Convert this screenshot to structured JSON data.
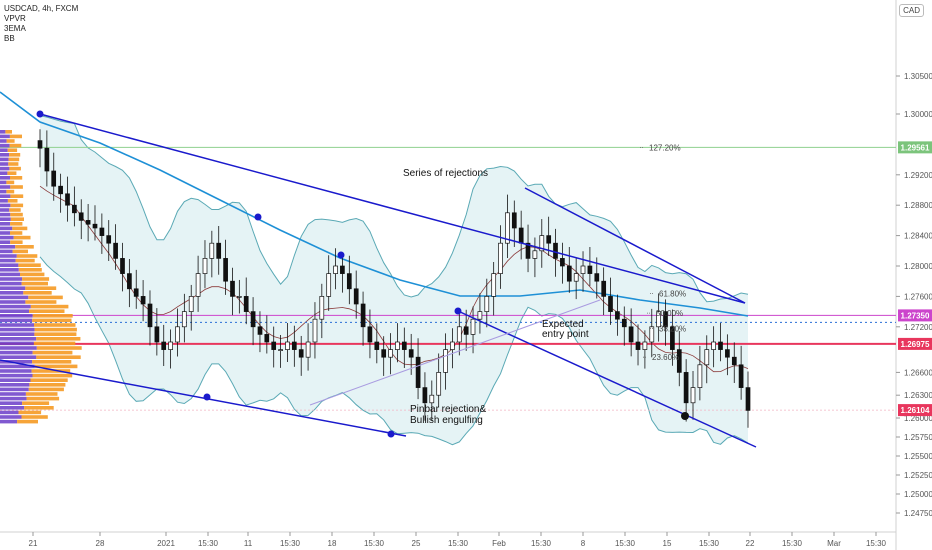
{
  "header": {
    "symbol": "USDCAD, 4h, FXCM",
    "indicators": [
      "VPVR",
      "3EMA",
      "BB"
    ]
  },
  "currency_button": "CAD",
  "colors": {
    "down_trendline": "#1a1acc",
    "ema": "#1e90d6",
    "bb": "#5aa9b5",
    "bb_fill": "#dff0f2",
    "level_green": "#8fd18f",
    "level_magenta": "#cc44cc",
    "level_red": "#e8365d",
    "vol_purple": "#6a3cc8",
    "vol_orange": "#f59a23",
    "candle": "#111111"
  },
  "price_labels": {
    "level_green": "1.29561",
    "level_magenta": "1.27350",
    "level_red": "1.26975",
    "last_price": "1.26104"
  },
  "annotations": {
    "series_of_rejections": "Series of rejections",
    "expected_entry_1": "Expected",
    "expected_entry_2": "entry point",
    "pinbar_1": "Pinbar rejection&",
    "pinbar_2": "Bullish engulfing"
  },
  "fib_labels": [
    "127.20%",
    "61.80%",
    "50.00%",
    "38.20%",
    "23.60%"
  ],
  "fib_levels": [
    1.29561,
    1.2764,
    1.2738,
    1.2718,
    1.268
  ],
  "chart_data": {
    "type": "candlestick",
    "title": "USDCAD, 4h, FXCM",
    "ylim": [
      1.245,
      1.315
    ],
    "y_ticks": [
      "1.30500",
      "1.30000",
      "1.29200",
      "1.28800",
      "1.28400",
      "1.28000",
      "1.27600",
      "1.27200",
      "1.26600",
      "1.26300",
      "1.26000",
      "1.25750",
      "1.25500",
      "1.25250",
      "1.25000",
      "1.24750"
    ],
    "y_tick_values": [
      1.305,
      1.3,
      1.292,
      1.288,
      1.284,
      1.28,
      1.276,
      1.272,
      1.266,
      1.263,
      1.26,
      1.2575,
      1.255,
      1.2525,
      1.25,
      1.2475
    ],
    "x_ticks": [
      "21",
      "28",
      "2021",
      "15:30",
      "11",
      "15:30",
      "18",
      "15:30",
      "25",
      "15:30",
      "Feb",
      "15:30",
      "8",
      "15:30",
      "15",
      "15:30",
      "22",
      "15:30",
      "Mar",
      "15:30"
    ],
    "close_series": [
      1.2955,
      1.2925,
      1.2905,
      1.2895,
      1.288,
      1.287,
      1.286,
      1.2855,
      1.285,
      1.284,
      1.283,
      1.281,
      1.279,
      1.277,
      1.276,
      1.275,
      1.272,
      1.27,
      1.269,
      1.27,
      1.272,
      1.274,
      1.276,
      1.279,
      1.281,
      1.283,
      1.281,
      1.278,
      1.276,
      1.276,
      1.274,
      1.272,
      1.271,
      1.27,
      1.269,
      1.269,
      1.27,
      1.269,
      1.268,
      1.27,
      1.273,
      1.276,
      1.279,
      1.28,
      1.279,
      1.277,
      1.275,
      1.272,
      1.27,
      1.269,
      1.268,
      1.269,
      1.27,
      1.269,
      1.268,
      1.264,
      1.262,
      1.263,
      1.266,
      1.269,
      1.27,
      1.272,
      1.271,
      1.273,
      1.274,
      1.276,
      1.279,
      1.283,
      1.287,
      1.285,
      1.283,
      1.281,
      1.282,
      1.284,
      1.283,
      1.281,
      1.28,
      1.278,
      1.279,
      1.28,
      1.279,
      1.278,
      1.276,
      1.274,
      1.273,
      1.272,
      1.27,
      1.269,
      1.27,
      1.272,
      1.274,
      1.272,
      1.269,
      1.266,
      1.262,
      1.264,
      1.267,
      1.269,
      1.27,
      1.269,
      1.268,
      1.267,
      1.264,
      1.261
    ],
    "x_range": [
      "21",
      "22"
    ]
  }
}
